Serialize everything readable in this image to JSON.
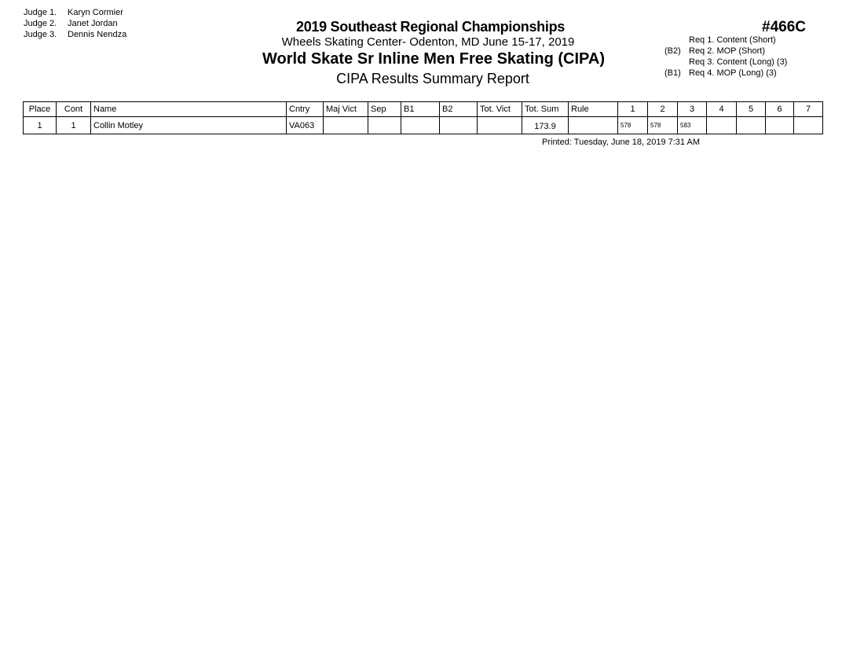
{
  "judges": [
    {
      "label": "Judge  1.",
      "name": "Karyn Cormier"
    },
    {
      "label": "Judge  2.",
      "name": "Janet Jordan"
    },
    {
      "label": "Judge  3.",
      "name": "Dennis Nendza"
    }
  ],
  "header": {
    "event": "2019 Southeast Regional Championships",
    "venue": "Wheels Skating Center- Odenton, MD  June 15-17, 2019",
    "competition": "World Skate Sr Inline Men Free Skating  (CIPA)",
    "report": "CIPA Results Summary Report",
    "code": "#466C"
  },
  "requirements": [
    {
      "prefix": "",
      "text": "Req  1.  Content (Short)"
    },
    {
      "prefix": "(B2)",
      "text": "Req  2.  MOP (Short)"
    },
    {
      "prefix": "",
      "text": "Req  3.  Content (Long) (3)"
    },
    {
      "prefix": "(B1)",
      "text": "Req  4.  MOP (Long) (3)"
    }
  ],
  "table": {
    "columns": [
      "Place",
      "Cont",
      "Name",
      "Cntry",
      "Maj Vict",
      "Sep",
      "B1",
      "B2",
      "Tot. Vict",
      "Tot. Sum",
      "Rule",
      "1",
      "2",
      "3",
      "4",
      "5",
      "6",
      "7"
    ],
    "rows": [
      [
        "1",
        "1",
        "Collin Motley",
        "VA063",
        "",
        "",
        "",
        "",
        "",
        "173.9",
        "",
        "578",
        "578",
        "583",
        "",
        "",
        "",
        ""
      ]
    ]
  },
  "printed": "Printed:  Tuesday, June 18, 2019  7:31 AM"
}
